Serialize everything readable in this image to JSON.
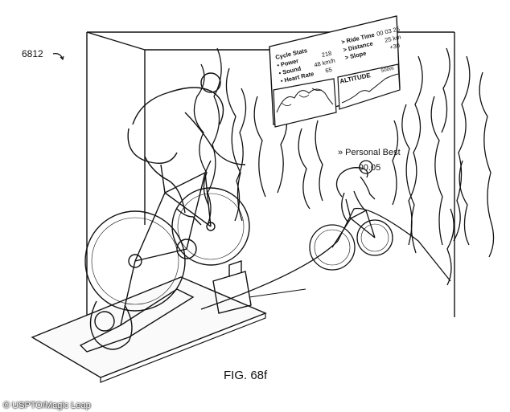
{
  "figure": {
    "ref_number": "6812",
    "caption": "FIG. 68f"
  },
  "hud": {
    "header": "Cycle Stats",
    "rows": [
      {
        "label": "• Power",
        "value": "218"
      },
      {
        "label": "• Sound",
        "value": "48 km/h"
      },
      {
        "label": "• Heart Rate",
        "value": "65"
      }
    ],
    "right_rows": [
      {
        "label": "> Ride Time",
        "value": "00 03 25"
      },
      {
        "label": "> Distance",
        "value": "25 km"
      },
      {
        "label": "> Slope",
        "value": "+30"
      }
    ],
    "altitude_label": "ALTITUDE",
    "altitude_value": "500m"
  },
  "ghost": {
    "label": "» Personal Best",
    "delta": "-00.05"
  },
  "credit": "© USPTO/Magic Leap"
}
